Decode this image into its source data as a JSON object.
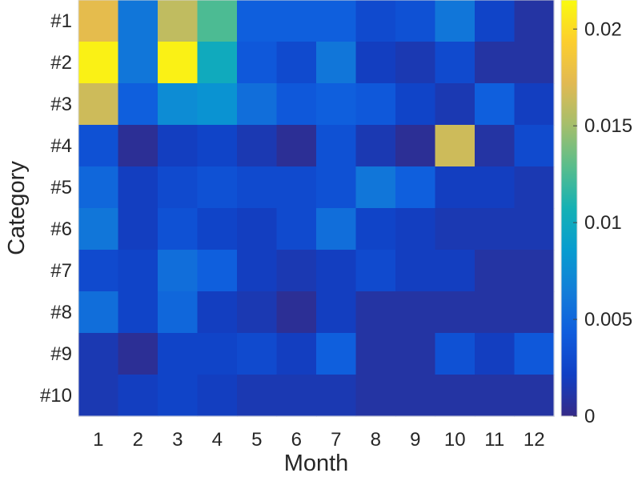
{
  "chart_data": {
    "type": "heatmap",
    "xlabel": "Month",
    "ylabel": "Category",
    "x_categories": [
      "1",
      "2",
      "3",
      "4",
      "5",
      "6",
      "7",
      "8",
      "9",
      "10",
      "11",
      "12"
    ],
    "y_categories": [
      "#1",
      "#2",
      "#3",
      "#4",
      "#5",
      "#6",
      "#7",
      "#8",
      "#9",
      "#10"
    ],
    "colorbar": {
      "range": [
        0,
        0.0215
      ],
      "ticks": [
        0,
        0.005,
        0.01,
        0.015,
        0.02
      ],
      "tick_labels": [
        "0",
        "0.005",
        "0.01",
        "0.015",
        "0.02"
      ],
      "colormap": "parula"
    },
    "values": [
      [
        0.0175,
        0.006,
        0.016,
        0.0125,
        0.0045,
        0.0045,
        0.0045,
        0.003,
        0.0035,
        0.006,
        0.0025,
        0.001
      ],
      [
        0.021,
        0.006,
        0.021,
        0.01,
        0.004,
        0.003,
        0.006,
        0.002,
        0.0015,
        0.003,
        0.001,
        0.001
      ],
      [
        0.0165,
        0.0045,
        0.0075,
        0.008,
        0.0055,
        0.004,
        0.0045,
        0.004,
        0.0025,
        0.0015,
        0.0045,
        0.002
      ],
      [
        0.0035,
        0.0005,
        0.002,
        0.0025,
        0.0015,
        0.0005,
        0.0035,
        0.0015,
        0.0005,
        0.0165,
        0.001,
        0.003
      ],
      [
        0.005,
        0.002,
        0.003,
        0.0035,
        0.003,
        0.003,
        0.0035,
        0.006,
        0.0045,
        0.002,
        0.002,
        0.0015
      ],
      [
        0.006,
        0.002,
        0.0035,
        0.0025,
        0.002,
        0.003,
        0.0055,
        0.0025,
        0.002,
        0.0015,
        0.0015,
        0.0015
      ],
      [
        0.003,
        0.0025,
        0.0055,
        0.0045,
        0.002,
        0.0015,
        0.002,
        0.003,
        0.002,
        0.002,
        0.001,
        0.001
      ],
      [
        0.0055,
        0.0025,
        0.005,
        0.002,
        0.0015,
        0.0005,
        0.002,
        0.001,
        0.001,
        0.001,
        0.001,
        0.001
      ],
      [
        0.0015,
        0.0005,
        0.0025,
        0.0025,
        0.003,
        0.002,
        0.0045,
        0.001,
        0.001,
        0.0035,
        0.002,
        0.004
      ],
      [
        0.0015,
        0.002,
        0.0025,
        0.002,
        0.0015,
        0.0015,
        0.0015,
        0.001,
        0.001,
        0.001,
        0.001,
        0.001
      ]
    ]
  }
}
